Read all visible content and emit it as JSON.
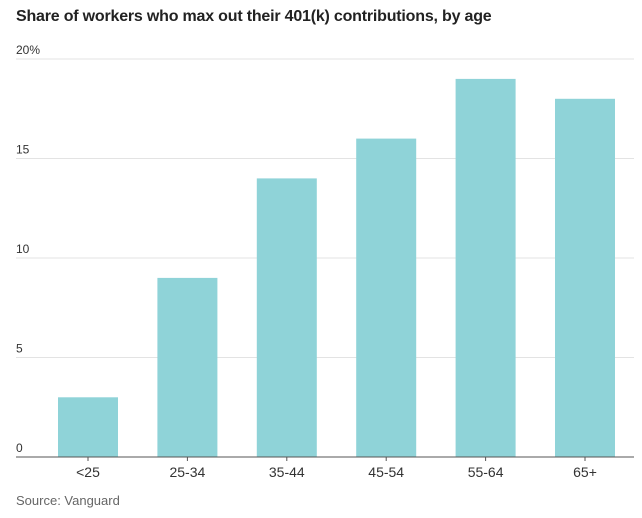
{
  "chart_data": {
    "type": "bar",
    "title": "Share of workers who max out their 401(k) contributions, by age",
    "categories": [
      "<25",
      "25-34",
      "35-44",
      "45-54",
      "55-64",
      "65+"
    ],
    "values": [
      3,
      9,
      14,
      16,
      19,
      18
    ],
    "ylim": [
      0,
      20
    ],
    "yticks": [
      0,
      5,
      10,
      15,
      20
    ],
    "ytick_labels": [
      "0",
      "5",
      "10",
      "15",
      "20%"
    ],
    "xlabel": "",
    "ylabel": "",
    "grid": true,
    "bar_color": "#8fd3d8",
    "source": "Source: Vanguard"
  }
}
